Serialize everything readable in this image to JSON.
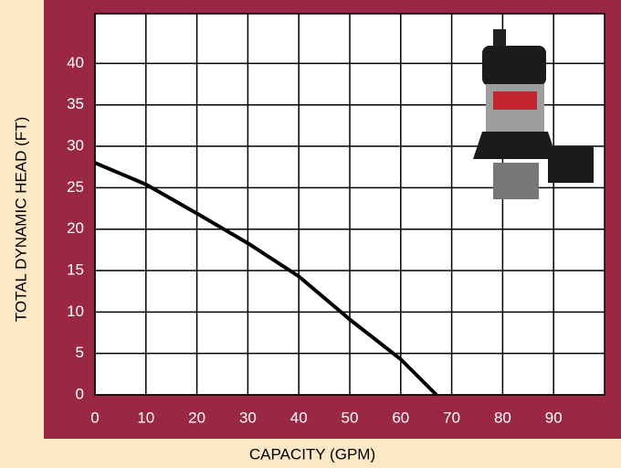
{
  "chart_data": {
    "type": "line",
    "x_label": "CAPACITY (GPM)",
    "y_label": "TOTAL DYNAMIC HEAD (FT)",
    "x": [
      0,
      10,
      20,
      30,
      40,
      50,
      60,
      67
    ],
    "series": [
      {
        "color": "#000000",
        "values": [
          28,
          25.4,
          21.9,
          18.3,
          14.3,
          9.1,
          4.3,
          0
        ]
      }
    ],
    "xlim": [
      0,
      100
    ],
    "xticks": [
      0,
      10,
      20,
      30,
      40,
      50,
      60,
      70,
      80,
      90
    ],
    "ylim": [
      0,
      46
    ],
    "yticks": [
      0,
      5,
      10,
      15,
      20,
      25,
      30,
      35,
      40
    ],
    "grid": true
  }
}
